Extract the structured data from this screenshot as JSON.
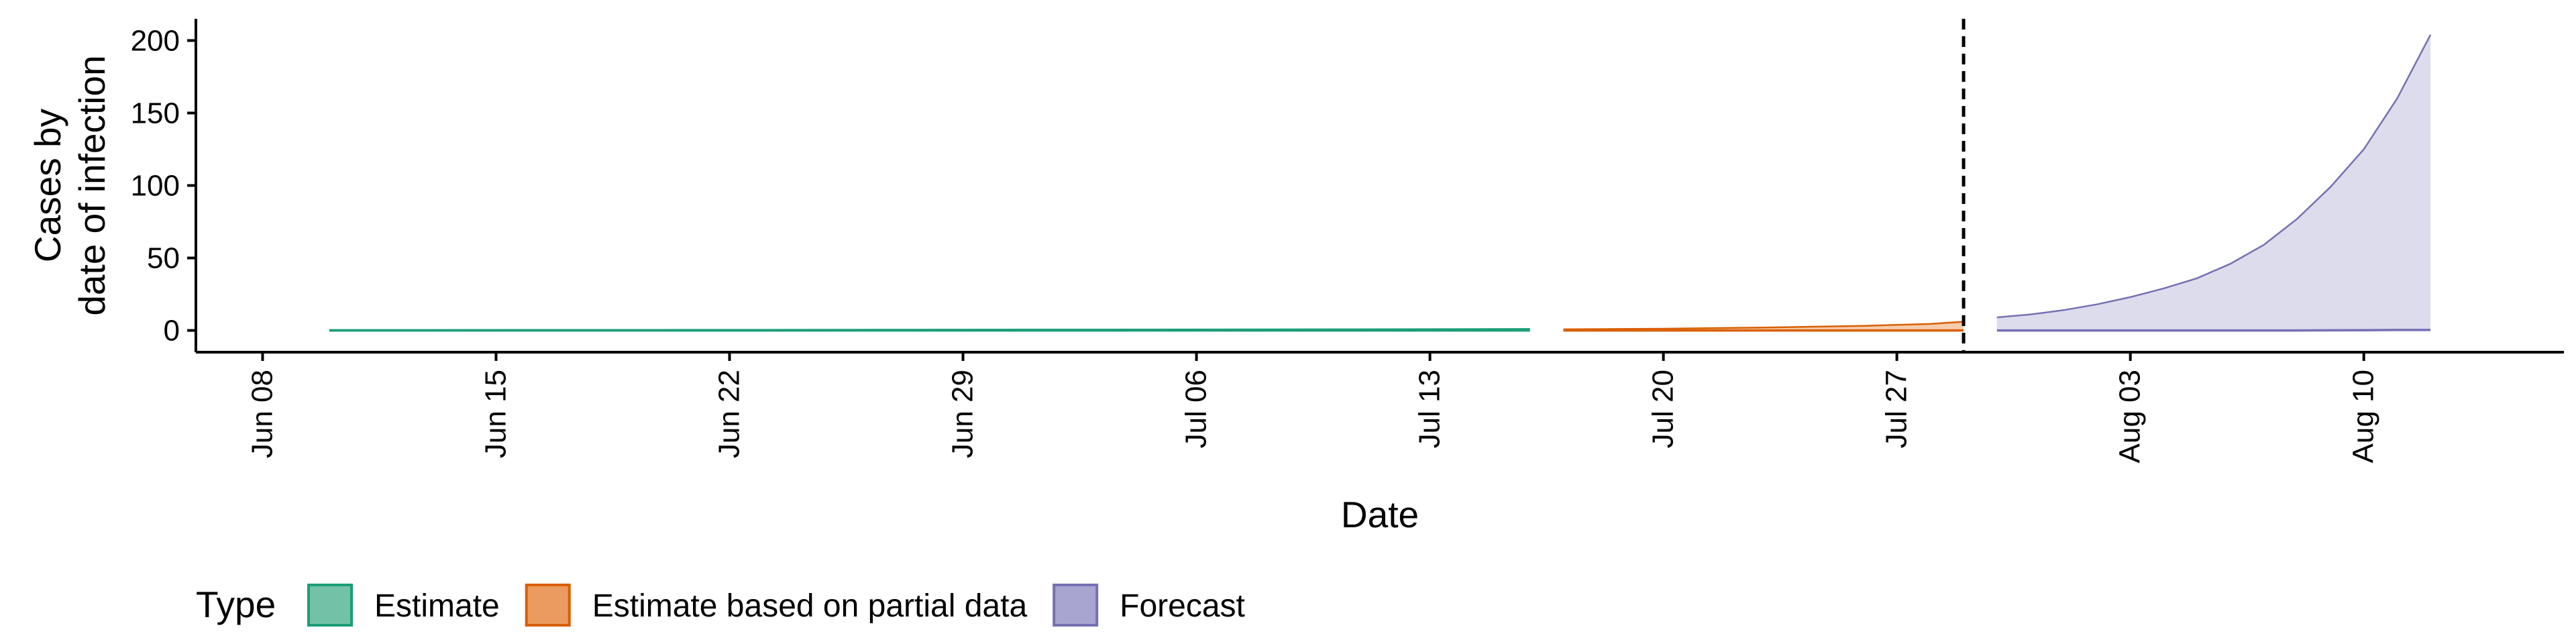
{
  "chart_data": {
    "type": "area",
    "xlabel": "Date",
    "ylabel": [
      "Cases by",
      "date of infection"
    ],
    "x_range": [
      "2020-06-06",
      "2020-08-16"
    ],
    "ylim": [
      -15,
      215
    ],
    "y_ticks": [
      0,
      50,
      100,
      150,
      200
    ],
    "x_ticks": [
      {
        "date": "2020-06-08",
        "label": "Jun 08"
      },
      {
        "date": "2020-06-15",
        "label": "Jun 15"
      },
      {
        "date": "2020-06-22",
        "label": "Jun 22"
      },
      {
        "date": "2020-06-29",
        "label": "Jun 29"
      },
      {
        "date": "2020-07-06",
        "label": "Jul 06"
      },
      {
        "date": "2020-07-13",
        "label": "Jul 13"
      },
      {
        "date": "2020-07-20",
        "label": "Jul 20"
      },
      {
        "date": "2020-07-27",
        "label": "Jul 27"
      },
      {
        "date": "2020-08-03",
        "label": "Aug 03"
      },
      {
        "date": "2020-08-10",
        "label": "Aug 10"
      }
    ],
    "vline": {
      "date": "2020-07-29",
      "style": "dashed"
    },
    "grid": false,
    "legend": {
      "title": "Type",
      "position": "bottom-left",
      "entries": [
        {
          "label": "Estimate",
          "fill": "#72c2a8",
          "stroke": "#1b9e77"
        },
        {
          "label": "Estimate based on partial data",
          "fill": "#eb9b5f",
          "stroke": "#d95f02"
        },
        {
          "label": "Forecast",
          "fill": "#a9a5d1",
          "stroke": "#7570b3"
        }
      ]
    },
    "series": [
      {
        "name": "Estimate",
        "fill": "#b8e0d2",
        "stroke": "#1b9e77",
        "fill_opacity": 0.9,
        "points": [
          {
            "date": "2020-06-10",
            "lower": 0,
            "upper": 0.3
          },
          {
            "date": "2020-06-20",
            "lower": 0,
            "upper": 0.4
          },
          {
            "date": "2020-07-01",
            "lower": 0,
            "upper": 0.6
          },
          {
            "date": "2020-07-10",
            "lower": 0,
            "upper": 0.8
          },
          {
            "date": "2020-07-16",
            "lower": 0,
            "upper": 1.0
          }
        ]
      },
      {
        "name": "Estimate based on partial data",
        "fill": "#f4c7a3",
        "stroke": "#d95f02",
        "fill_opacity": 0.9,
        "points": [
          {
            "date": "2020-07-17",
            "lower": 0,
            "upper": 0.8
          },
          {
            "date": "2020-07-20",
            "lower": 0,
            "upper": 1.2
          },
          {
            "date": "2020-07-23",
            "lower": 0,
            "upper": 2.0
          },
          {
            "date": "2020-07-26",
            "lower": 0,
            "upper": 3.2
          },
          {
            "date": "2020-07-28",
            "lower": 0,
            "upper": 4.5
          },
          {
            "date": "2020-07-29",
            "lower": 0,
            "upper": 6.0
          }
        ]
      },
      {
        "name": "Forecast",
        "fill": "#dcdcec",
        "stroke": "#7570b3",
        "fill_opacity": 1,
        "points": [
          {
            "date": "2020-07-30",
            "lower": 0,
            "upper": 9
          },
          {
            "date": "2020-07-31",
            "lower": 0,
            "upper": 11
          },
          {
            "date": "2020-08-01",
            "lower": 0,
            "upper": 14
          },
          {
            "date": "2020-08-02",
            "lower": 0,
            "upper": 18
          },
          {
            "date": "2020-08-03",
            "lower": 0,
            "upper": 23
          },
          {
            "date": "2020-08-04",
            "lower": 0,
            "upper": 29
          },
          {
            "date": "2020-08-05",
            "lower": 0,
            "upper": 36
          },
          {
            "date": "2020-08-06",
            "lower": 0,
            "upper": 46
          },
          {
            "date": "2020-08-07",
            "lower": 0,
            "upper": 59
          },
          {
            "date": "2020-08-08",
            "lower": 0,
            "upper": 77
          },
          {
            "date": "2020-08-09",
            "lower": 0.1,
            "upper": 99
          },
          {
            "date": "2020-08-10",
            "lower": 0.2,
            "upper": 125
          },
          {
            "date": "2020-08-11",
            "lower": 0.3,
            "upper": 160
          },
          {
            "date": "2020-08-12",
            "lower": 0.3,
            "upper": 204
          }
        ]
      }
    ]
  }
}
